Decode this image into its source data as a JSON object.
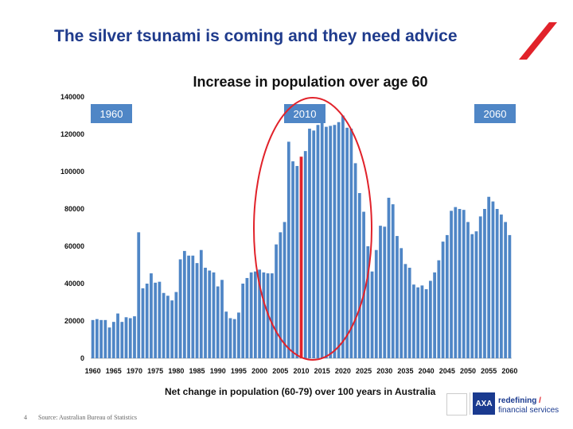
{
  "slide": {
    "title": "The silver tsunami is coming and they need advice",
    "footer_page": "4",
    "footer_source": "Source: Australian Bureau of Statistics",
    "brand_line1": "redefining",
    "brand_line2": "financial services",
    "brand_slash": "/",
    "logo_text": "AXA",
    "accent_color": "#e1222a",
    "brand_color": "#1a3a8f"
  },
  "chart_data": {
    "type": "bar",
    "title": "Increase in population over age 60",
    "xlabel": "Net change in population (60-79) over 100 years in Australia",
    "ylabel": "",
    "ylim": [
      0,
      140000
    ],
    "yticks": [
      0,
      20000,
      40000,
      60000,
      80000,
      100000,
      120000,
      140000
    ],
    "x_tick_labels": [
      "1960",
      "1965",
      "1970",
      "1975",
      "1980",
      "1985",
      "1990",
      "1995",
      "2000",
      "2005",
      "2010",
      "2015",
      "2020",
      "2025",
      "2030",
      "2035",
      "2040",
      "2045",
      "2050",
      "2055",
      "2060"
    ],
    "x_start": 1960,
    "x_end": 2060,
    "highlight_year": 2010,
    "bar_color": "#4f86c6",
    "highlight_color": "#e1222a",
    "annotations": [
      "1960",
      "2010",
      "2060"
    ],
    "values": [
      20500,
      21000,
      20500,
      20500,
      16500,
      19500,
      24000,
      19500,
      22000,
      21500,
      22500,
      67500,
      37500,
      40000,
      45500,
      40500,
      41000,
      35000,
      33500,
      31000,
      35500,
      53000,
      57500,
      55000,
      55000,
      51000,
      58000,
      48500,
      47000,
      46000,
      38500,
      42000,
      25000,
      21500,
      21000,
      24500,
      40000,
      43000,
      46000,
      46500,
      47500,
      46000,
      45500,
      45500,
      61000,
      67500,
      73000,
      116000,
      105500,
      103000,
      108000,
      111000,
      123000,
      122000,
      125000,
      127000,
      124000,
      124500,
      125000,
      126500,
      130000,
      123500,
      123000,
      104500,
      88500,
      78500,
      60000,
      46500,
      58000,
      71000,
      70500,
      86000,
      82500,
      65500,
      59000,
      50500,
      48500,
      39500,
      38000,
      39000,
      37000,
      41500,
      46000,
      52500,
      62500,
      66000,
      79000,
      81000,
      80000,
      79500,
      73000,
      66500,
      68000,
      76000,
      80000,
      86500,
      84000,
      80000,
      77000,
      73000,
      66000
    ]
  }
}
